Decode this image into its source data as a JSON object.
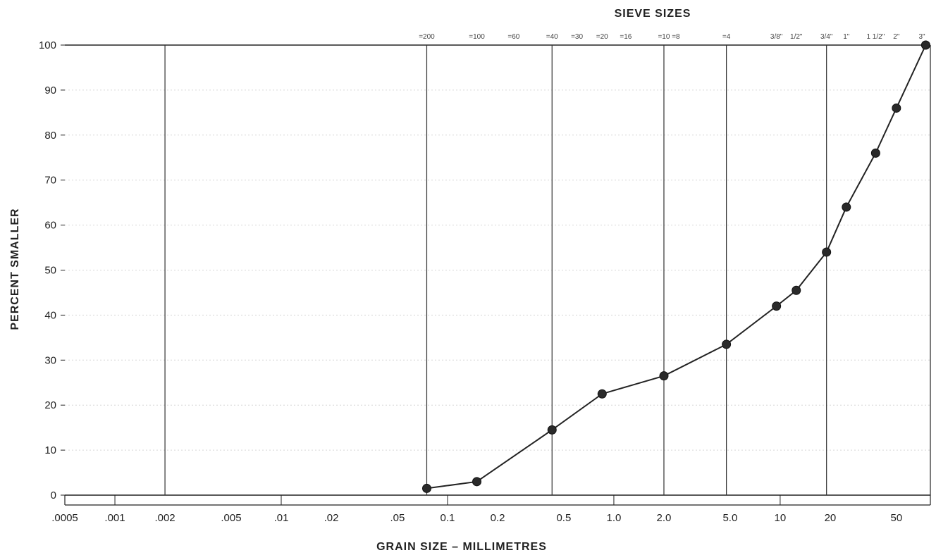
{
  "chart_data": {
    "type": "line",
    "title": "",
    "top_axis_title": "SIEVE SIZES",
    "xlabel": "GRAIN SIZE – MILLIMETRES",
    "ylabel": "PERCENT SMALLER",
    "x_scale": "log",
    "xlim": [
      0.0005,
      80
    ],
    "ylim": [
      0,
      100
    ],
    "y_ticks": [
      0,
      10,
      20,
      30,
      40,
      50,
      60,
      70,
      80,
      90,
      100
    ],
    "x_ticks": [
      {
        "value": 0.0005,
        "label": ".0005"
      },
      {
        "value": 0.001,
        "label": ".001"
      },
      {
        "value": 0.002,
        "label": ".002"
      },
      {
        "value": 0.005,
        "label": ".005"
      },
      {
        "value": 0.01,
        "label": ".01"
      },
      {
        "value": 0.02,
        "label": ".02"
      },
      {
        "value": 0.05,
        "label": ".05"
      },
      {
        "value": 0.1,
        "label": "0.1"
      },
      {
        "value": 0.2,
        "label": "0.2"
      },
      {
        "value": 0.5,
        "label": "0.5"
      },
      {
        "value": 1.0,
        "label": "1.0"
      },
      {
        "value": 2.0,
        "label": "2.0"
      },
      {
        "value": 5.0,
        "label": "5.0"
      },
      {
        "value": 10,
        "label": "10"
      },
      {
        "value": 20,
        "label": "20"
      },
      {
        "value": 50,
        "label": "50"
      }
    ],
    "sieve_sizes": [
      {
        "value": 0.075,
        "label": "=200"
      },
      {
        "value": 0.15,
        "label": "=100"
      },
      {
        "value": 0.25,
        "label": "=60"
      },
      {
        "value": 0.425,
        "label": "=40"
      },
      {
        "value": 0.6,
        "label": "=30"
      },
      {
        "value": 0.85,
        "label": "=20"
      },
      {
        "value": 1.18,
        "label": "=16"
      },
      {
        "value": 2.0,
        "label": "=10"
      },
      {
        "value": 2.36,
        "label": "=8"
      },
      {
        "value": 4.75,
        "label": "=4"
      },
      {
        "value": 9.5,
        "label": "3/8\""
      },
      {
        "value": 12.5,
        "label": "1/2\""
      },
      {
        "value": 19,
        "label": "3/4\""
      },
      {
        "value": 25,
        "label": "1\""
      },
      {
        "value": 37.5,
        "label": "1 1/2\""
      },
      {
        "value": 50,
        "label": "2\""
      },
      {
        "value": 75,
        "label": "3\""
      }
    ],
    "vertical_lines": [
      0.002,
      0.075,
      0.425,
      2.0,
      4.75,
      19
    ],
    "grid": true,
    "series": [
      {
        "x": [
          0.075,
          0.15,
          0.425,
          0.85,
          2.0,
          4.75,
          9.5,
          12.5,
          19,
          25,
          37.5,
          50,
          75
        ],
        "y": [
          1.5,
          3,
          14.5,
          22.5,
          26.5,
          33.5,
          42,
          45.5,
          54,
          64,
          76,
          86,
          100
        ]
      }
    ]
  }
}
